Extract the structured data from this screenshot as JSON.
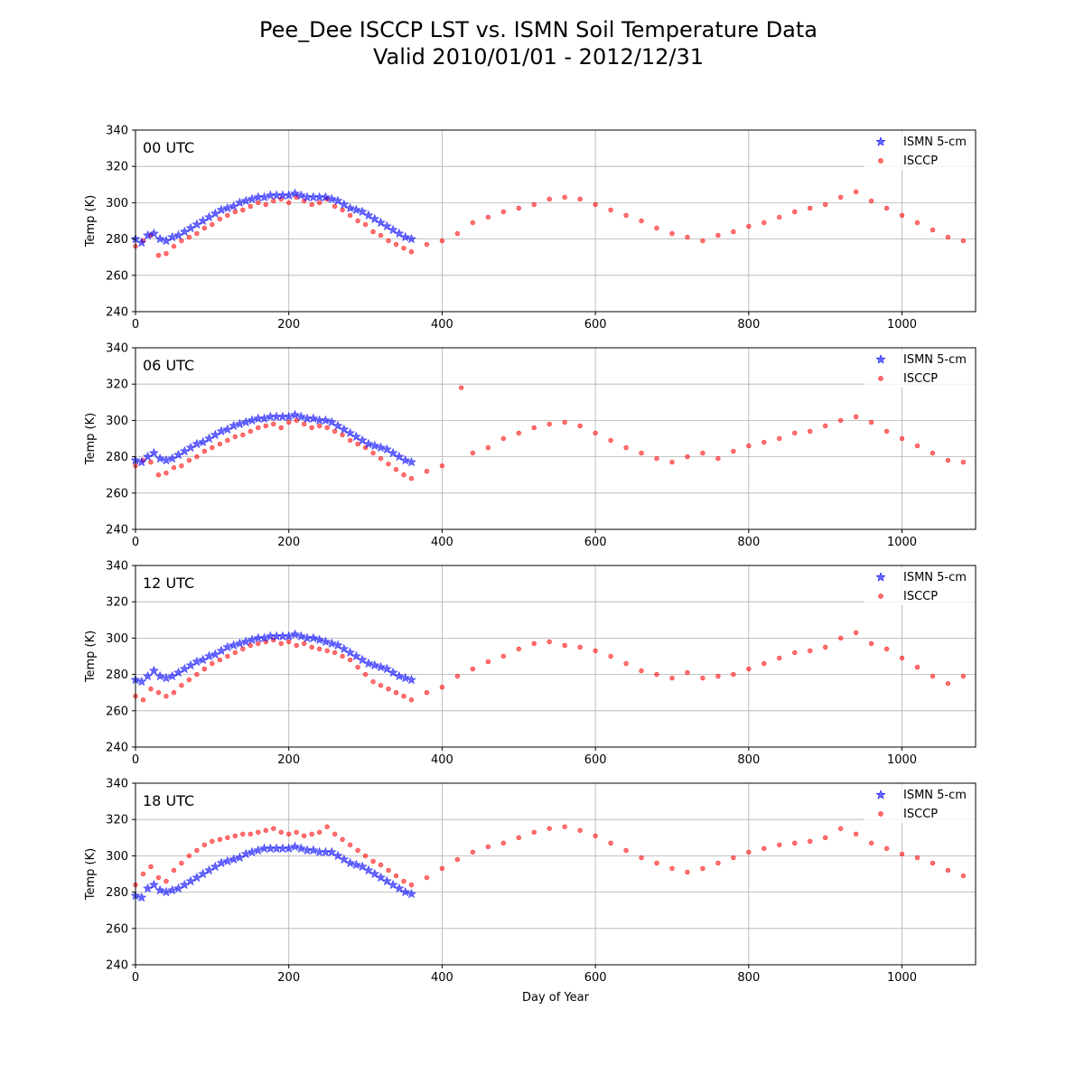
{
  "figure": {
    "title_line1": "Pee_Dee ISCCP LST vs. ISMN Soil Temperature Data",
    "title_line2": "Valid 2010/01/01 - 2012/12/31",
    "xlabel": "Day of Year",
    "ylabel": "Temp (K)"
  },
  "colors": {
    "ismn": "#0000ff",
    "isccp": "#ff0000",
    "grid": "#b0b0b0"
  },
  "chart_data": {
    "type": "scatter",
    "xlim": [
      0,
      1096
    ],
    "ylim": [
      240,
      340
    ],
    "xticks": [
      0,
      200,
      400,
      600,
      800,
      1000
    ],
    "yticks": [
      240,
      260,
      280,
      300,
      320,
      340
    ],
    "grid": true,
    "legend_position": "top-right",
    "series_names": [
      "ISMN 5-cm",
      "ISCCP"
    ],
    "panels": [
      {
        "label": "00 UTC",
        "ismn": {
          "x": [
            0,
            8,
            16,
            24,
            32,
            40,
            48,
            56,
            64,
            72,
            80,
            88,
            96,
            104,
            112,
            120,
            128,
            136,
            144,
            152,
            160,
            168,
            176,
            184,
            192,
            200,
            208,
            216,
            224,
            232,
            240,
            248,
            256,
            264,
            272,
            280,
            288,
            296,
            304,
            312,
            320,
            328,
            336,
            344,
            352,
            360
          ],
          "y": [
            280,
            278,
            282,
            283,
            280,
            279,
            281,
            282,
            284,
            286,
            288,
            290,
            292,
            294,
            296,
            297,
            298,
            300,
            301,
            302,
            303,
            303,
            304,
            304,
            304,
            304,
            305,
            304,
            303,
            303,
            303,
            303,
            302,
            301,
            299,
            297,
            296,
            295,
            293,
            291,
            289,
            287,
            285,
            283,
            281,
            280
          ]
        },
        "isccp": {
          "x": [
            0,
            10,
            20,
            30,
            40,
            50,
            60,
            70,
            80,
            90,
            100,
            110,
            120,
            130,
            140,
            150,
            160,
            170,
            180,
            190,
            200,
            210,
            220,
            230,
            240,
            250,
            260,
            270,
            280,
            290,
            300,
            310,
            320,
            330,
            340,
            350,
            360,
            380,
            400,
            420,
            440,
            460,
            480,
            500,
            520,
            540,
            560,
            580,
            600,
            620,
            640,
            660,
            680,
            700,
            720,
            740,
            760,
            780,
            800,
            820,
            840,
            860,
            880,
            900,
            920,
            940,
            960,
            980,
            1000,
            1020,
            1040,
            1060,
            1080
          ],
          "y": [
            276,
            279,
            282,
            271,
            272,
            276,
            279,
            281,
            283,
            286,
            288,
            291,
            293,
            295,
            296,
            298,
            300,
            299,
            301,
            302,
            300,
            303,
            301,
            299,
            300,
            302,
            298,
            296,
            293,
            290,
            288,
            284,
            282,
            279,
            277,
            275,
            273,
            277,
            279,
            283,
            289,
            292,
            295,
            297,
            299,
            302,
            303,
            302,
            299,
            296,
            293,
            290,
            286,
            283,
            281,
            279,
            282,
            284,
            287,
            289,
            292,
            295,
            297,
            299,
            303,
            306,
            301,
            297,
            293,
            289,
            285,
            281,
            279
          ]
        }
      },
      {
        "label": "06 UTC",
        "ismn": {
          "x": [
            0,
            8,
            16,
            24,
            32,
            40,
            48,
            56,
            64,
            72,
            80,
            88,
            96,
            104,
            112,
            120,
            128,
            136,
            144,
            152,
            160,
            168,
            176,
            184,
            192,
            200,
            208,
            216,
            224,
            232,
            240,
            248,
            256,
            264,
            272,
            280,
            288,
            296,
            304,
            312,
            320,
            328,
            336,
            344,
            352,
            360
          ],
          "y": [
            278,
            277,
            280,
            282,
            279,
            278,
            279,
            281,
            283,
            285,
            287,
            288,
            290,
            292,
            294,
            295,
            297,
            298,
            299,
            300,
            301,
            301,
            302,
            302,
            302,
            302,
            303,
            302,
            301,
            301,
            300,
            300,
            299,
            297,
            295,
            293,
            291,
            289,
            287,
            286,
            285,
            284,
            282,
            280,
            278,
            277
          ]
        },
        "isccp": {
          "x": [
            0,
            10,
            20,
            30,
            40,
            50,
            60,
            70,
            80,
            90,
            100,
            110,
            120,
            130,
            140,
            150,
            160,
            170,
            180,
            190,
            200,
            210,
            220,
            230,
            240,
            250,
            260,
            270,
            280,
            290,
            300,
            310,
            320,
            330,
            340,
            350,
            360,
            380,
            400,
            425,
            440,
            460,
            480,
            500,
            520,
            540,
            560,
            580,
            600,
            620,
            640,
            660,
            680,
            700,
            720,
            740,
            760,
            780,
            800,
            820,
            840,
            860,
            880,
            900,
            920,
            940,
            960,
            980,
            1000,
            1020,
            1040,
            1060,
            1080
          ],
          "y": [
            275,
            278,
            277,
            270,
            271,
            274,
            275,
            278,
            280,
            283,
            285,
            287,
            289,
            291,
            292,
            294,
            296,
            297,
            298,
            296,
            299,
            300,
            298,
            296,
            297,
            296,
            294,
            292,
            289,
            287,
            285,
            282,
            279,
            276,
            273,
            270,
            268,
            272,
            275,
            318,
            282,
            285,
            290,
            293,
            296,
            298,
            299,
            297,
            293,
            289,
            285,
            282,
            279,
            277,
            280,
            282,
            279,
            283,
            286,
            288,
            290,
            293,
            294,
            297,
            300,
            302,
            299,
            294,
            290,
            286,
            282,
            278,
            277
          ]
        }
      },
      {
        "label": "12 UTC",
        "ismn": {
          "x": [
            0,
            8,
            16,
            24,
            32,
            40,
            48,
            56,
            64,
            72,
            80,
            88,
            96,
            104,
            112,
            120,
            128,
            136,
            144,
            152,
            160,
            168,
            176,
            184,
            192,
            200,
            208,
            216,
            224,
            232,
            240,
            248,
            256,
            264,
            272,
            280,
            288,
            296,
            304,
            312,
            320,
            328,
            336,
            344,
            352,
            360
          ],
          "y": [
            277,
            276,
            279,
            282,
            279,
            278,
            279,
            281,
            283,
            285,
            287,
            288,
            290,
            291,
            293,
            295,
            296,
            297,
            298,
            299,
            300,
            300,
            301,
            301,
            301,
            301,
            302,
            301,
            300,
            300,
            299,
            298,
            297,
            296,
            294,
            292,
            290,
            288,
            286,
            285,
            284,
            283,
            281,
            279,
            278,
            277
          ]
        },
        "isccp": {
          "x": [
            0,
            10,
            20,
            30,
            40,
            50,
            60,
            70,
            80,
            90,
            100,
            110,
            120,
            130,
            140,
            150,
            160,
            170,
            180,
            190,
            200,
            210,
            220,
            230,
            240,
            250,
            260,
            270,
            280,
            290,
            300,
            310,
            320,
            330,
            340,
            350,
            360,
            380,
            400,
            420,
            440,
            460,
            480,
            500,
            520,
            540,
            560,
            580,
            600,
            620,
            640,
            660,
            680,
            700,
            720,
            740,
            760,
            780,
            800,
            820,
            840,
            860,
            880,
            900,
            920,
            940,
            960,
            980,
            1000,
            1020,
            1040,
            1060,
            1080
          ],
          "y": [
            268,
            266,
            272,
            270,
            268,
            270,
            274,
            277,
            280,
            283,
            286,
            288,
            290,
            292,
            294,
            296,
            297,
            298,
            299,
            297,
            298,
            296,
            297,
            295,
            294,
            293,
            292,
            290,
            288,
            284,
            280,
            276,
            274,
            272,
            270,
            268,
            266,
            270,
            273,
            279,
            283,
            287,
            290,
            294,
            297,
            298,
            296,
            295,
            293,
            290,
            286,
            282,
            280,
            278,
            281,
            278,
            279,
            280,
            283,
            286,
            289,
            292,
            293,
            295,
            300,
            303,
            297,
            294,
            289,
            284,
            279,
            275,
            279
          ]
        }
      },
      {
        "label": "18 UTC",
        "ismn": {
          "x": [
            0,
            8,
            16,
            24,
            32,
            40,
            48,
            56,
            64,
            72,
            80,
            88,
            96,
            104,
            112,
            120,
            128,
            136,
            144,
            152,
            160,
            168,
            176,
            184,
            192,
            200,
            208,
            216,
            224,
            232,
            240,
            248,
            256,
            264,
            272,
            280,
            288,
            296,
            304,
            312,
            320,
            328,
            336,
            344,
            352,
            360
          ],
          "y": [
            278,
            277,
            282,
            284,
            281,
            280,
            281,
            282,
            284,
            286,
            288,
            290,
            292,
            294,
            296,
            297,
            298,
            299,
            301,
            302,
            303,
            304,
            304,
            304,
            304,
            304,
            305,
            304,
            303,
            303,
            302,
            302,
            302,
            300,
            298,
            296,
            295,
            294,
            292,
            290,
            288,
            286,
            284,
            282,
            280,
            279
          ]
        },
        "isccp": {
          "x": [
            0,
            10,
            20,
            30,
            40,
            50,
            60,
            70,
            80,
            90,
            100,
            110,
            120,
            130,
            140,
            150,
            160,
            170,
            180,
            190,
            200,
            210,
            220,
            230,
            240,
            250,
            260,
            270,
            280,
            290,
            300,
            310,
            320,
            330,
            340,
            350,
            360,
            380,
            400,
            420,
            440,
            460,
            480,
            500,
            520,
            540,
            560,
            580,
            600,
            620,
            640,
            660,
            680,
            700,
            720,
            740,
            760,
            780,
            800,
            820,
            840,
            860,
            880,
            900,
            920,
            940,
            960,
            980,
            1000,
            1020,
            1040,
            1060,
            1080
          ],
          "y": [
            284,
            290,
            294,
            288,
            286,
            292,
            296,
            300,
            303,
            306,
            308,
            309,
            310,
            311,
            312,
            312,
            313,
            314,
            315,
            313,
            312,
            313,
            311,
            312,
            313,
            316,
            312,
            309,
            306,
            303,
            300,
            297,
            295,
            292,
            289,
            286,
            284,
            288,
            293,
            298,
            302,
            305,
            307,
            310,
            313,
            315,
            316,
            314,
            311,
            307,
            303,
            299,
            296,
            293,
            291,
            293,
            296,
            299,
            302,
            304,
            306,
            307,
            308,
            310,
            315,
            312,
            307,
            304,
            301,
            299,
            296,
            292,
            289
          ]
        }
      }
    ]
  }
}
